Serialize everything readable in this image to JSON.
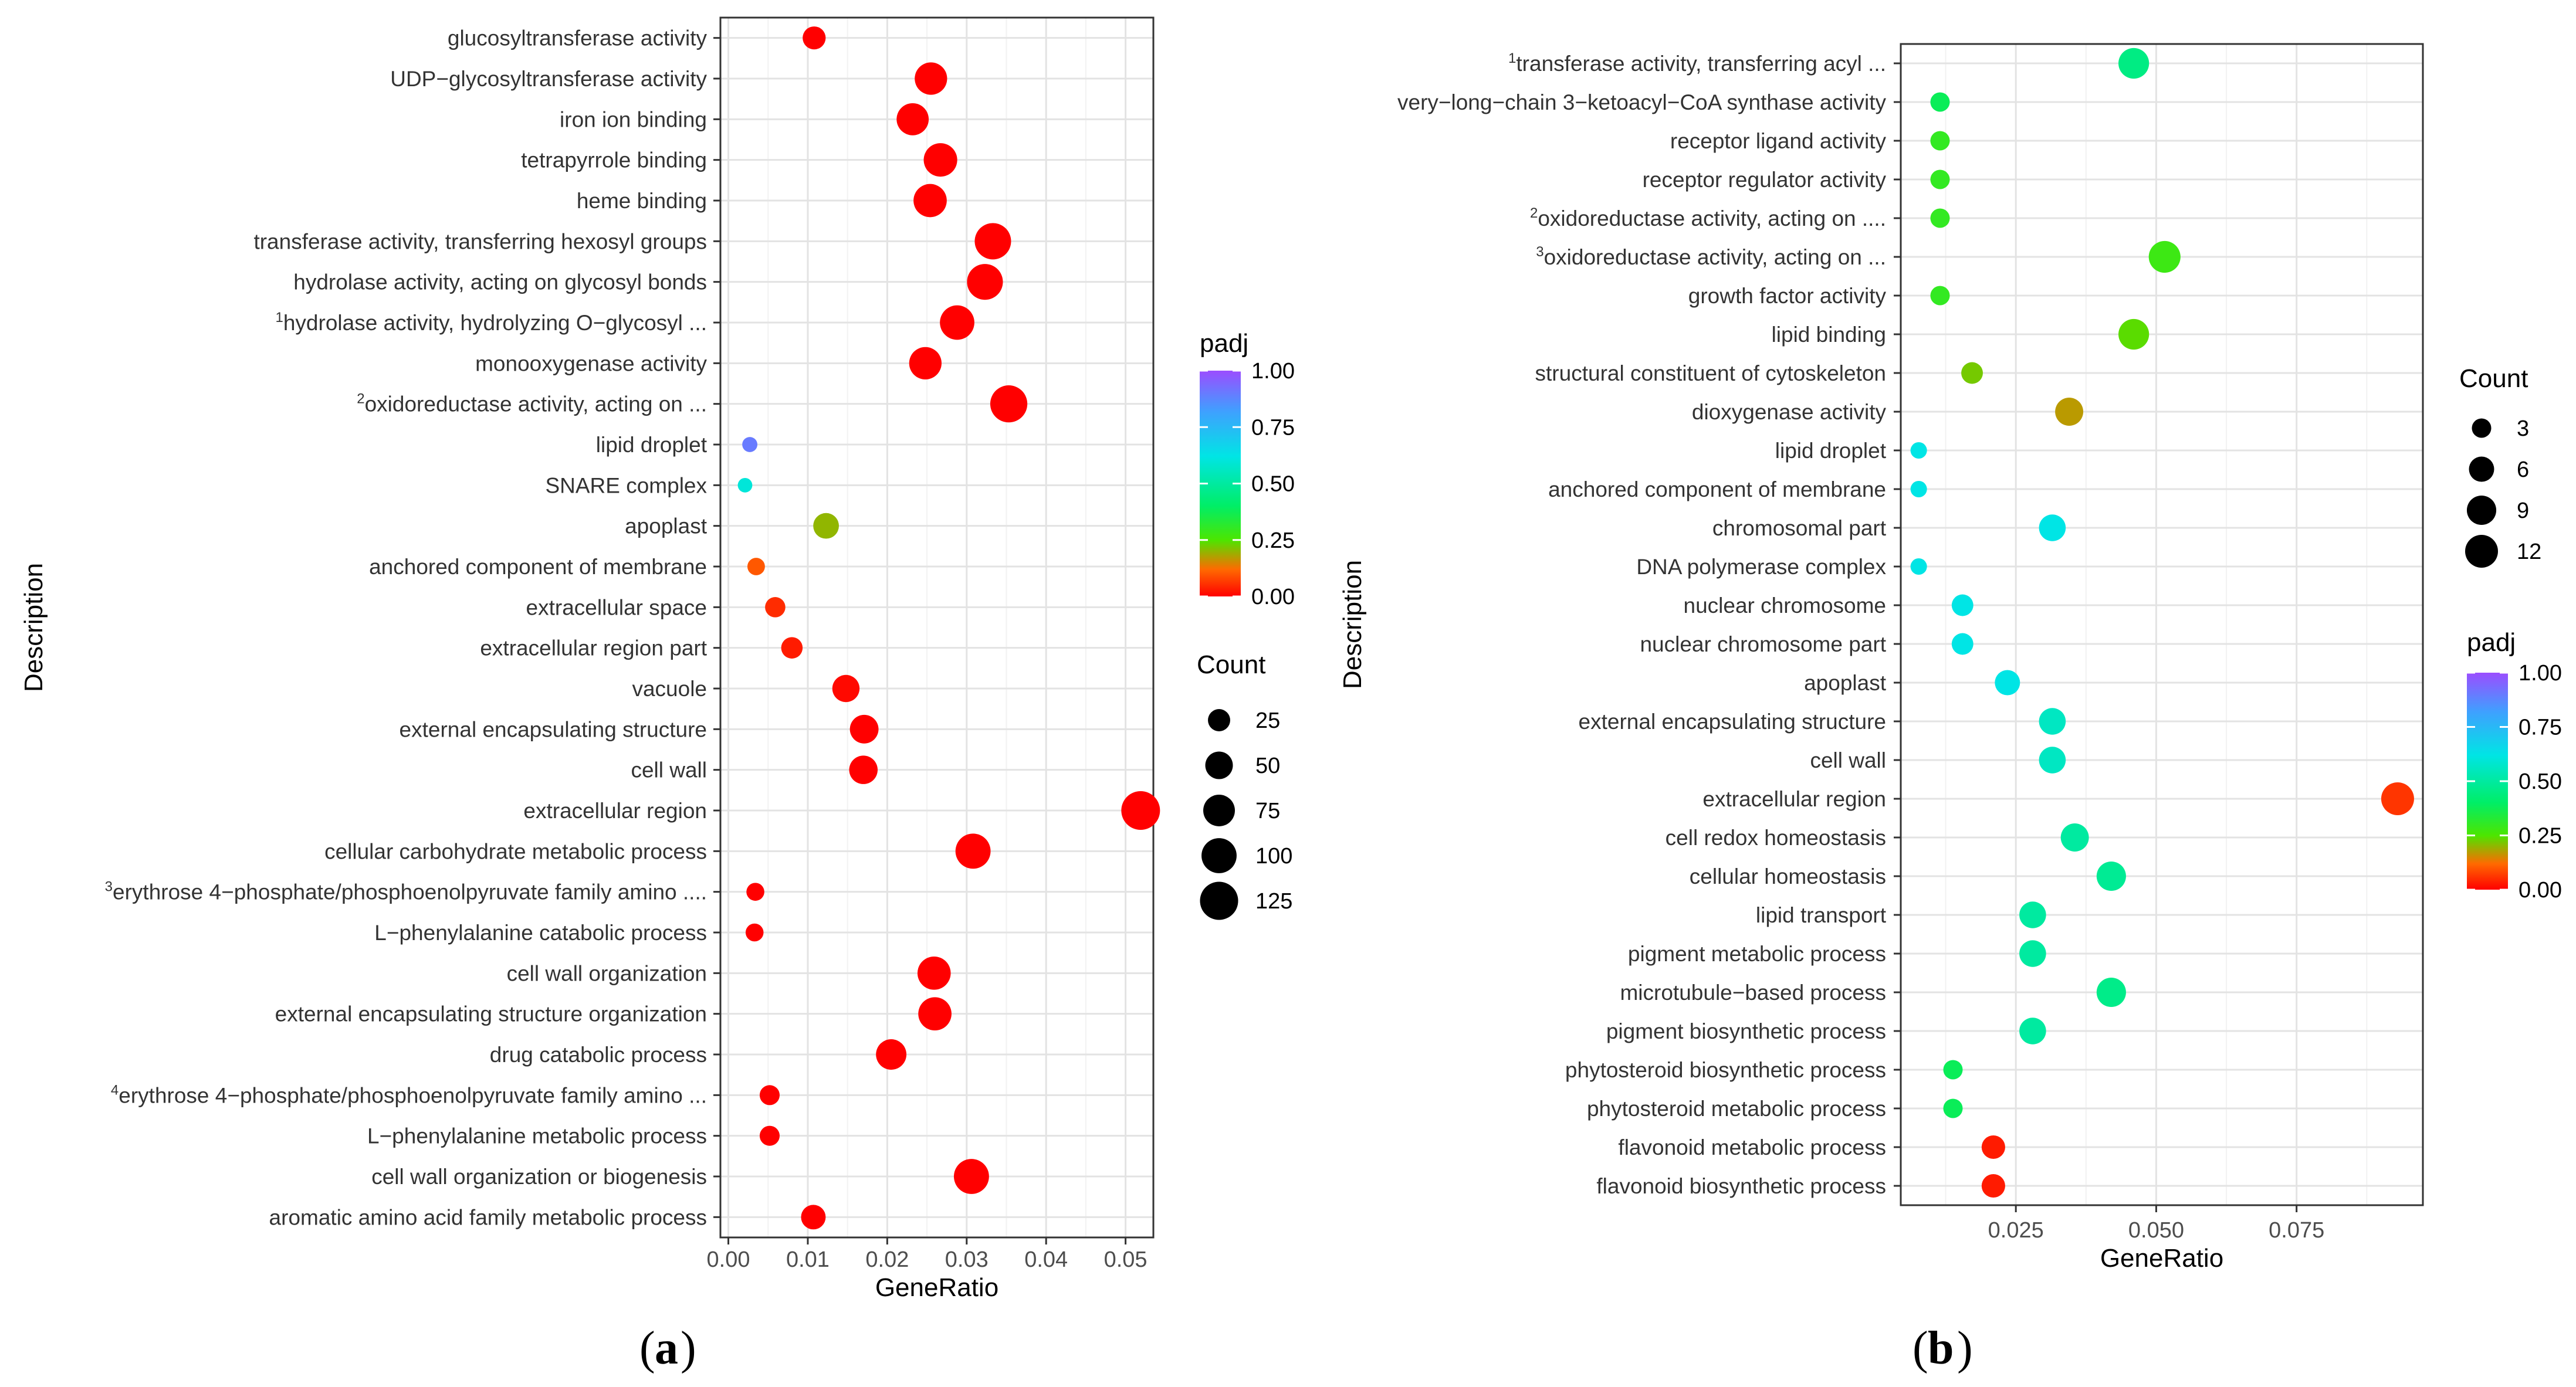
{
  "chart_data": [
    {
      "panel": "a",
      "type": "scatter",
      "xlabel": "GeneRatio",
      "ylabel": "Description",
      "xlim": [
        -0.001,
        0.0535
      ],
      "xticks": [
        "0.00",
        "0.01",
        "0.02",
        "0.03",
        "0.04",
        "0.05"
      ],
      "xtick_values": [
        0.0,
        0.01,
        0.02,
        0.03,
        0.04,
        0.05
      ],
      "color_legend": {
        "title": "padj",
        "ticks": [
          "1.00",
          "0.75",
          "0.50",
          "0.25",
          "0.00"
        ]
      },
      "size_legend": {
        "title": "Count",
        "labels": [
          "25",
          "50",
          "75",
          "100",
          "125"
        ],
        "values": [
          25,
          50,
          75,
          100,
          125
        ]
      },
      "points": [
        {
          "term": "glucosyltransferase activity",
          "sup": "",
          "gene_ratio": 0.0108,
          "count": 28,
          "padj": 0.0
        },
        {
          "term": "UDP−glycosyltransferase activity",
          "sup": "",
          "gene_ratio": 0.0255,
          "count": 80,
          "padj": 0.0
        },
        {
          "term": "iron ion binding",
          "sup": "",
          "gene_ratio": 0.0232,
          "count": 78,
          "padj": 0.0
        },
        {
          "term": "tetrapyrrole binding",
          "sup": "",
          "gene_ratio": 0.0267,
          "count": 88,
          "padj": 0.0
        },
        {
          "term": "heme binding",
          "sup": "",
          "gene_ratio": 0.0254,
          "count": 86,
          "padj": 0.0
        },
        {
          "term": "transferase activity, transferring hexosyl groups",
          "sup": "",
          "gene_ratio": 0.0333,
          "count": 110,
          "padj": 0.0
        },
        {
          "term": "hydrolase activity, acting on glycosyl bonds",
          "sup": "",
          "gene_ratio": 0.0323,
          "count": 106,
          "padj": 0.0
        },
        {
          "term": "hydrolase activity, hydrolyzing O−glycosyl ...",
          "sup": "1",
          "gene_ratio": 0.0288,
          "count": 95,
          "padj": 0.0
        },
        {
          "term": "monooxygenase activity",
          "sup": "",
          "gene_ratio": 0.0248,
          "count": 80,
          "padj": 0.0
        },
        {
          "term": "oxidoreductase activity, acting on ...",
          "sup": "2",
          "gene_ratio": 0.0353,
          "count": 116,
          "padj": 0.0
        },
        {
          "term": "lipid droplet",
          "sup": "",
          "gene_ratio": 0.0027,
          "count": 5,
          "padj": 0.9
        },
        {
          "term": "SNARE complex",
          "sup": "",
          "gene_ratio": 0.0021,
          "count": 4,
          "padj": 0.6
        },
        {
          "term": "apoplast",
          "sup": "",
          "gene_ratio": 0.0123,
          "count": 40,
          "padj": 0.2
        },
        {
          "term": "anchored component of membrane",
          "sup": "",
          "gene_ratio": 0.0035,
          "count": 10,
          "padj": 0.1
        },
        {
          "term": "extracellular space",
          "sup": "",
          "gene_ratio": 0.0059,
          "count": 18,
          "padj": 0.05
        },
        {
          "term": "extracellular region part",
          "sup": "",
          "gene_ratio": 0.008,
          "count": 22,
          "padj": 0.03
        },
        {
          "term": "vacuole",
          "sup": "",
          "gene_ratio": 0.0148,
          "count": 48,
          "padj": 0.01
        },
        {
          "term": "external encapsulating structure",
          "sup": "",
          "gene_ratio": 0.0171,
          "count": 56,
          "padj": 0.0
        },
        {
          "term": "cell wall",
          "sup": "",
          "gene_ratio": 0.017,
          "count": 55,
          "padj": 0.0
        },
        {
          "term": "extracellular region",
          "sup": "",
          "gene_ratio": 0.0519,
          "count": 130,
          "padj": 0.0
        },
        {
          "term": "cellular carbohydrate metabolic process",
          "sup": "",
          "gene_ratio": 0.0308,
          "count": 100,
          "padj": 0.0
        },
        {
          "term": "erythrose 4−phosphate/phosphoenolpyruvate family amino ....",
          "sup": "3",
          "gene_ratio": 0.0034,
          "count": 11,
          "padj": 0.0
        },
        {
          "term": "L−phenylalanine catabolic process",
          "sup": "",
          "gene_ratio": 0.0033,
          "count": 11,
          "padj": 0.0
        },
        {
          "term": "cell wall organization",
          "sup": "",
          "gene_ratio": 0.0259,
          "count": 86,
          "padj": 0.0
        },
        {
          "term": "external encapsulating structure organization",
          "sup": "",
          "gene_ratio": 0.026,
          "count": 86,
          "padj": 0.0
        },
        {
          "term": "drug catabolic process",
          "sup": "",
          "gene_ratio": 0.0205,
          "count": 67,
          "padj": 0.0
        },
        {
          "term": "erythrose 4−phosphate/phosphoenolpyruvate family amino ...",
          "sup": "4",
          "gene_ratio": 0.0052,
          "count": 17,
          "padj": 0.0
        },
        {
          "term": "L−phenylalanine metabolic process",
          "sup": "",
          "gene_ratio": 0.0052,
          "count": 17,
          "padj": 0.0
        },
        {
          "term": "cell wall organization or biogenesis",
          "sup": "",
          "gene_ratio": 0.0306,
          "count": 100,
          "padj": 0.0
        },
        {
          "term": "aromatic amino acid family metabolic process",
          "sup": "",
          "gene_ratio": 0.0107,
          "count": 35,
          "padj": 0.0
        }
      ]
    },
    {
      "panel": "b",
      "type": "scatter",
      "xlabel": "GeneRatio",
      "ylabel": "Description",
      "xlim": [
        0.0045,
        0.0975
      ],
      "xticks": [
        "0.025",
        "0.050",
        "0.075"
      ],
      "xtick_values": [
        0.025,
        0.05,
        0.075
      ],
      "color_legend": {
        "title": "padj",
        "ticks": [
          "1.00",
          "0.75",
          "0.50",
          "0.25",
          "0.00"
        ]
      },
      "size_legend": {
        "title": "Count",
        "labels": [
          "3",
          "6",
          "9",
          "12"
        ],
        "values": [
          3,
          6,
          9,
          12
        ]
      },
      "points": [
        {
          "term": "transferase activity, transferring acyl ...",
          "sup": "1",
          "gene_ratio": 0.046,
          "count": 10,
          "padj": 0.45
        },
        {
          "term": "very−long−chain 3−ketoacyl−CoA synthase activity",
          "sup": "",
          "gene_ratio": 0.0115,
          "count": 3,
          "padj": 0.38
        },
        {
          "term": "receptor ligand activity",
          "sup": "",
          "gene_ratio": 0.0115,
          "count": 3,
          "padj": 0.3
        },
        {
          "term": "receptor regulator activity",
          "sup": "",
          "gene_ratio": 0.0115,
          "count": 3,
          "padj": 0.3
        },
        {
          "term": "oxidoreductase activity, acting on ....",
          "sup": "2",
          "gene_ratio": 0.0115,
          "count": 3,
          "padj": 0.3
        },
        {
          "term": "oxidoreductase activity, acting on ...",
          "sup": "3",
          "gene_ratio": 0.0515,
          "count": 11,
          "padj": 0.28
        },
        {
          "term": "growth factor activity",
          "sup": "",
          "gene_ratio": 0.0115,
          "count": 3,
          "padj": 0.3
        },
        {
          "term": "lipid binding",
          "sup": "",
          "gene_ratio": 0.046,
          "count": 10,
          "padj": 0.24
        },
        {
          "term": "structural constituent of cytoskeleton",
          "sup": "",
          "gene_ratio": 0.0172,
          "count": 4,
          "padj": 0.22
        },
        {
          "term": "dioxygenase activity",
          "sup": "",
          "gene_ratio": 0.0345,
          "count": 8,
          "padj": 0.17
        },
        {
          "term": "lipid droplet",
          "sup": "",
          "gene_ratio": 0.0077,
          "count": 2,
          "padj": 0.62
        },
        {
          "term": "anchored component of membrane",
          "sup": "",
          "gene_ratio": 0.0077,
          "count": 2,
          "padj": 0.62
        },
        {
          "term": "chromosomal part",
          "sup": "",
          "gene_ratio": 0.0315,
          "count": 7,
          "padj": 0.62
        },
        {
          "term": "DNA polymerase complex",
          "sup": "",
          "gene_ratio": 0.0077,
          "count": 2,
          "padj": 0.62
        },
        {
          "term": "nuclear chromosome",
          "sup": "",
          "gene_ratio": 0.0155,
          "count": 4,
          "padj": 0.62
        },
        {
          "term": "nuclear chromosome part",
          "sup": "",
          "gene_ratio": 0.0155,
          "count": 4,
          "padj": 0.62
        },
        {
          "term": "apoplast",
          "sup": "",
          "gene_ratio": 0.0235,
          "count": 6,
          "padj": 0.62
        },
        {
          "term": "external encapsulating structure",
          "sup": "",
          "gene_ratio": 0.0315,
          "count": 7,
          "padj": 0.56
        },
        {
          "term": "cell wall",
          "sup": "",
          "gene_ratio": 0.0315,
          "count": 7,
          "padj": 0.56
        },
        {
          "term": "extracellular region",
          "sup": "",
          "gene_ratio": 0.093,
          "count": 12,
          "padj": 0.06
        },
        {
          "term": "cell redox homeostasis",
          "sup": "",
          "gene_ratio": 0.0355,
          "count": 8,
          "padj": 0.5
        },
        {
          "term": "cellular homeostasis",
          "sup": "",
          "gene_ratio": 0.042,
          "count": 9,
          "padj": 0.48
        },
        {
          "term": "lipid transport",
          "sup": "",
          "gene_ratio": 0.028,
          "count": 7,
          "padj": 0.5
        },
        {
          "term": "pigment metabolic process",
          "sup": "",
          "gene_ratio": 0.028,
          "count": 7,
          "padj": 0.5
        },
        {
          "term": "microtubule−based process",
          "sup": "",
          "gene_ratio": 0.042,
          "count": 9,
          "padj": 0.46
        },
        {
          "term": "pigment biosynthetic process",
          "sup": "",
          "gene_ratio": 0.028,
          "count": 7,
          "padj": 0.5
        },
        {
          "term": "phytosteroid biosynthetic process",
          "sup": "",
          "gene_ratio": 0.0138,
          "count": 3,
          "padj": 0.38
        },
        {
          "term": "phytosteroid metabolic process",
          "sup": "",
          "gene_ratio": 0.0138,
          "count": 3,
          "padj": 0.38
        },
        {
          "term": "flavonoid metabolic process",
          "sup": "",
          "gene_ratio": 0.021,
          "count": 5,
          "padj": 0.03
        },
        {
          "term": "flavonoid biosynthetic process",
          "sup": "",
          "gene_ratio": 0.021,
          "count": 5,
          "padj": 0.03
        }
      ]
    }
  ],
  "panel_labels": {
    "a": "a",
    "b": "b"
  }
}
